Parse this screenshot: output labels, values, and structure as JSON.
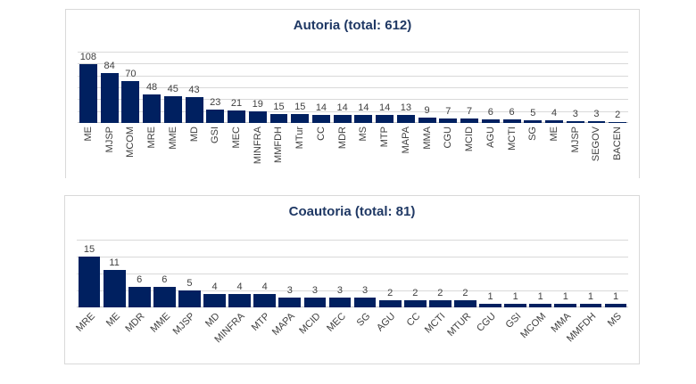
{
  "colors": {
    "bar_fill": "#002060",
    "title_text": "#1F3864",
    "gridline": "#D9D9D9",
    "axis_line": "#C6C6C6",
    "label_text": "#404040",
    "panel_border": "#D9D9D9",
    "background": "#FFFFFF"
  },
  "chart_data": [
    {
      "type": "bar",
      "title": "Autoria (total: 612)",
      "categories": [
        "ME",
        "MJSP",
        "MCOM",
        "MRE",
        "MME",
        "MD",
        "GSI",
        "MEC",
        "MINFRA",
        "MMFDH",
        "MTur",
        "CC",
        "MDR",
        "MS",
        "MTP",
        "MAPA",
        "MMA",
        "CGU",
        "MCID",
        "AGU",
        "MCTI",
        "SG",
        "ME",
        "MJSP",
        "SEGOV",
        "BACEN"
      ],
      "values": [
        108,
        84,
        70,
        48,
        45,
        43,
        23,
        21,
        19,
        15,
        15,
        14,
        14,
        14,
        14,
        13,
        9,
        7,
        7,
        6,
        6,
        5,
        4,
        3,
        3,
        2
      ],
      "total": 612,
      "ylim": [
        0,
        120
      ],
      "gridline_step": 20,
      "grid": true,
      "legend": false,
      "data_labels": true,
      "xlabel_rotation": "vertical-90"
    },
    {
      "type": "bar",
      "title": "Coautoria (total: 81)",
      "categories": [
        "MRE",
        "ME",
        "MDR",
        "MME",
        "MJSP",
        "MD",
        "MINFRA",
        "MTP",
        "MAPA",
        "MCID",
        "MEC",
        "SG",
        "AGU",
        "CC",
        "MCTI",
        "MTUR",
        "CGU",
        "GSI",
        "MCOM",
        "MMA",
        "MMFDH",
        "MS"
      ],
      "values": [
        15,
        11,
        6,
        6,
        5,
        4,
        4,
        4,
        3,
        3,
        3,
        3,
        2,
        2,
        2,
        2,
        1,
        1,
        1,
        1,
        1,
        1
      ],
      "total": 81,
      "ylim": [
        0,
        20
      ],
      "gridline_step": 5,
      "grid": true,
      "legend": false,
      "data_labels": true,
      "xlabel_rotation": "diagonal-45"
    }
  ]
}
